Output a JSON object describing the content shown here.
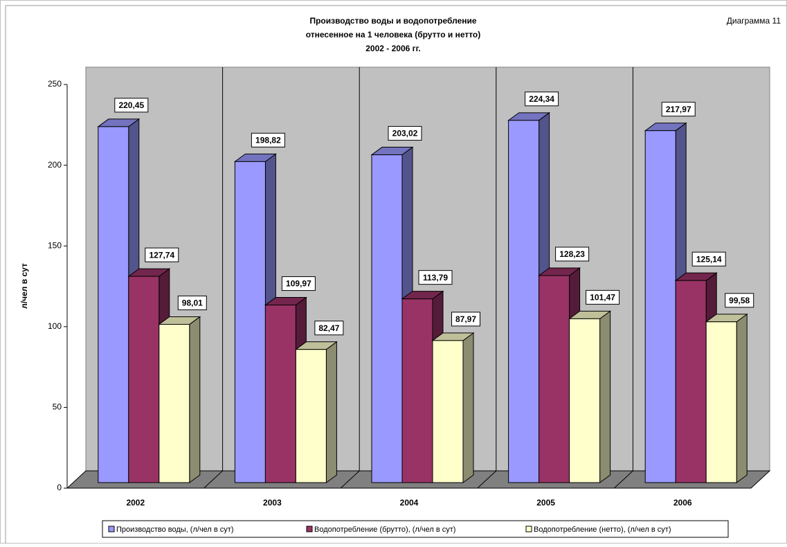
{
  "chart_data": {
    "type": "bar3d",
    "title": "Производство воды и водопотребление",
    "subtitle": "отнесенное на 1 человека (брутто и нетто)",
    "period": "2002 - 2006 гг.",
    "annotation": "Диаграмма 11",
    "y_label": "л/чел в сут",
    "categories": [
      "2002",
      "2003",
      "2004",
      "2005",
      "2006"
    ],
    "series": [
      {
        "name": "Производство воды, (л/чел в сут)",
        "color": "#9999ff",
        "values": [
          220.45,
          198.82,
          203.02,
          224.34,
          217.97
        ],
        "value_labels": [
          "220,45",
          "198,82",
          "203,02",
          "224,34",
          "217,97"
        ]
      },
      {
        "name": "Водопотребление (брутто), (л/чел в сут)",
        "color": "#993366",
        "values": [
          127.74,
          109.97,
          113.79,
          128.23,
          125.14
        ],
        "value_labels": [
          "127,74",
          "109,97",
          "113,79",
          "128,23",
          "125,14"
        ]
      },
      {
        "name": "Водопотребление (нетто), (л/чел в сут)",
        "color": "#ffffcc",
        "values": [
          98.01,
          82.47,
          87.97,
          101.47,
          99.58
        ],
        "value_labels": [
          "98,01",
          "82,47",
          "87,97",
          "101,47",
          "99,58"
        ]
      }
    ],
    "ylim": [
      0,
      250
    ],
    "yticks": [
      0,
      50,
      100,
      150,
      200,
      250
    ],
    "legend": "bottom"
  }
}
